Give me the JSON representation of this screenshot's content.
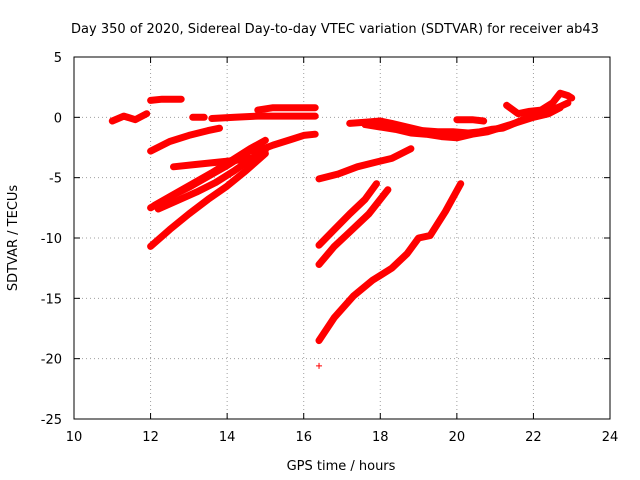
{
  "chart_data": {
    "type": "scatter",
    "title": "Day 350 of 2020, Sidereal Day-to-day VTEC variation (SDTVAR) for receiver ab43",
    "xlabel": "GPS time / hours",
    "ylabel": "SDTVAR / TECUs",
    "xlim": [
      10,
      24
    ],
    "ylim": [
      -25,
      5
    ],
    "xticks": [
      10,
      12,
      14,
      16,
      18,
      20,
      22,
      24
    ],
    "yticks": [
      -25,
      -20,
      -15,
      -10,
      -5,
      0,
      5
    ],
    "grid": true,
    "marker": "+",
    "color": "#ff0000",
    "series": [
      {
        "points": [
          [
            11.0,
            -0.3
          ],
          [
            11.3,
            0.1
          ],
          [
            11.6,
            -0.2
          ],
          [
            11.9,
            0.3
          ]
        ]
      },
      {
        "points": [
          [
            12.0,
            1.4
          ],
          [
            12.3,
            1.5
          ],
          [
            12.8,
            1.5
          ]
        ]
      },
      {
        "points": [
          [
            12.0,
            -2.8
          ],
          [
            12.5,
            -2.0
          ],
          [
            13.0,
            -1.5
          ],
          [
            13.5,
            -1.1
          ],
          [
            13.8,
            -0.9
          ]
        ]
      },
      {
        "points": [
          [
            13.1,
            0.0
          ],
          [
            13.4,
            0.0
          ]
        ]
      },
      {
        "points": [
          [
            13.6,
            -0.1
          ],
          [
            14.2,
            0.0
          ],
          [
            14.8,
            0.1
          ],
          [
            15.5,
            0.1
          ],
          [
            16.3,
            0.1
          ]
        ]
      },
      {
        "points": [
          [
            14.8,
            0.6
          ],
          [
            15.2,
            0.8
          ],
          [
            15.8,
            0.8
          ],
          [
            16.3,
            0.8
          ]
        ]
      },
      {
        "points": [
          [
            12.6,
            -4.1
          ],
          [
            13.2,
            -3.9
          ],
          [
            13.8,
            -3.7
          ],
          [
            14.4,
            -3.5
          ],
          [
            14.8,
            -3.3
          ]
        ]
      },
      {
        "points": [
          [
            14.7,
            -2.9
          ],
          [
            15.2,
            -2.3
          ],
          [
            15.7,
            -1.8
          ],
          [
            16.0,
            -1.5
          ],
          [
            16.3,
            -1.4
          ]
        ]
      },
      {
        "points": [
          [
            12.0,
            -7.5
          ],
          [
            12.5,
            -6.6
          ],
          [
            13.0,
            -5.8
          ],
          [
            13.5,
            -4.9
          ],
          [
            14.0,
            -4.0
          ],
          [
            14.5,
            -3.0
          ],
          [
            14.9,
            -2.1
          ]
        ]
      },
      {
        "points": [
          [
            12.1,
            -7.3
          ],
          [
            12.6,
            -6.4
          ],
          [
            13.1,
            -5.5
          ],
          [
            13.6,
            -4.6
          ],
          [
            14.1,
            -3.6
          ],
          [
            14.6,
            -2.6
          ],
          [
            15.0,
            -1.9
          ]
        ]
      },
      {
        "points": [
          [
            12.2,
            -7.6
          ],
          [
            12.7,
            -6.9
          ],
          [
            13.2,
            -6.2
          ],
          [
            13.7,
            -5.4
          ],
          [
            14.2,
            -4.4
          ],
          [
            14.7,
            -3.3
          ],
          [
            15.0,
            -2.7
          ]
        ]
      },
      {
        "points": [
          [
            12.0,
            -10.7
          ],
          [
            12.5,
            -9.3
          ],
          [
            13.0,
            -8.0
          ],
          [
            13.5,
            -6.8
          ],
          [
            14.0,
            -5.7
          ],
          [
            14.5,
            -4.4
          ],
          [
            15.0,
            -3.0
          ]
        ]
      },
      {
        "points": [
          [
            16.4,
            -5.1
          ],
          [
            16.9,
            -4.7
          ],
          [
            17.4,
            -4.1
          ],
          [
            17.9,
            -3.7
          ],
          [
            18.3,
            -3.4
          ],
          [
            18.8,
            -2.6
          ]
        ]
      },
      {
        "points": [
          [
            16.4,
            -10.6
          ],
          [
            16.8,
            -9.3
          ],
          [
            17.2,
            -8.0
          ],
          [
            17.6,
            -6.8
          ],
          [
            17.9,
            -5.5
          ]
        ]
      },
      {
        "points": [
          [
            16.4,
            -12.2
          ],
          [
            16.8,
            -10.7
          ],
          [
            17.2,
            -9.5
          ],
          [
            17.7,
            -8.0
          ],
          [
            18.2,
            -6.0
          ]
        ]
      },
      {
        "points": [
          [
            16.4,
            -18.5
          ],
          [
            16.8,
            -16.6
          ],
          [
            17.3,
            -14.8
          ],
          [
            17.8,
            -13.5
          ],
          [
            18.3,
            -12.5
          ],
          [
            18.7,
            -11.3
          ],
          [
            19.0,
            -10.0
          ],
          [
            19.3,
            -9.8
          ],
          [
            19.7,
            -7.8
          ],
          [
            20.1,
            -5.5
          ]
        ]
      },
      {
        "points": [
          [
            16.4,
            -20.6
          ]
        ]
      },
      {
        "points": [
          [
            17.2,
            -0.5
          ],
          [
            17.6,
            -0.4
          ],
          [
            18.0,
            -0.3
          ],
          [
            18.3,
            -0.5
          ],
          [
            18.7,
            -0.8
          ],
          [
            19.1,
            -1.1
          ],
          [
            19.5,
            -1.2
          ],
          [
            19.9,
            -1.2
          ],
          [
            20.3,
            -1.3
          ],
          [
            20.6,
            -1.2
          ],
          [
            20.9,
            -1.0
          ],
          [
            21.2,
            -0.9
          ],
          [
            21.5,
            -0.5
          ],
          [
            21.8,
            -0.1
          ],
          [
            22.1,
            0.2
          ],
          [
            22.4,
            0.5
          ],
          [
            22.7,
            0.9
          ],
          [
            22.9,
            1.2
          ]
        ]
      },
      {
        "points": [
          [
            17.6,
            -0.6
          ],
          [
            18.0,
            -0.8
          ],
          [
            18.4,
            -1.0
          ],
          [
            18.8,
            -1.3
          ],
          [
            19.2,
            -1.4
          ],
          [
            19.6,
            -1.6
          ],
          [
            20.0,
            -1.7
          ],
          [
            20.4,
            -1.4
          ],
          [
            20.8,
            -1.2
          ],
          [
            21.2,
            -0.8
          ],
          [
            21.6,
            -0.4
          ],
          [
            22.0,
            0.0
          ],
          [
            22.4,
            0.3
          ],
          [
            22.7,
            0.8
          ]
        ]
      },
      {
        "points": [
          [
            20.0,
            -0.2
          ],
          [
            20.4,
            -0.2
          ],
          [
            20.7,
            -0.3
          ]
        ]
      },
      {
        "points": [
          [
            21.3,
            1.0
          ],
          [
            21.6,
            0.3
          ],
          [
            21.9,
            0.5
          ],
          [
            22.2,
            0.6
          ],
          [
            22.5,
            1.2
          ],
          [
            22.7,
            2.0
          ],
          [
            22.9,
            1.8
          ],
          [
            23.0,
            1.6
          ]
        ]
      }
    ]
  }
}
